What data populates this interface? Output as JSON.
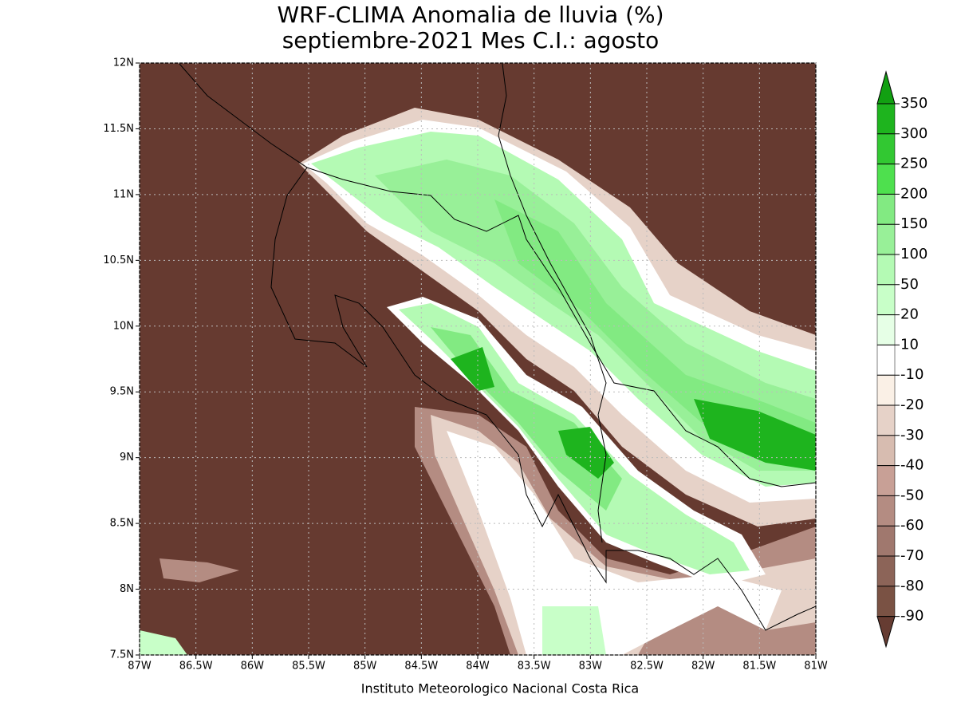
{
  "header": {
    "title": "WRF-CLIMA Anomalia de lluvia (%)",
    "subtitle": "septiembre-2021 Mes C.I.: agosto"
  },
  "map": {
    "xlim": [
      -87,
      -81
    ],
    "ylim": [
      7.5,
      12
    ],
    "xticks": [
      {
        "value": -87,
        "label": "87W"
      },
      {
        "value": -86.5,
        "label": "86.5W"
      },
      {
        "value": -86,
        "label": "86W"
      },
      {
        "value": -85.5,
        "label": "85.5W"
      },
      {
        "value": -85,
        "label": "85W"
      },
      {
        "value": -84.5,
        "label": "84.5W"
      },
      {
        "value": -84,
        "label": "84W"
      },
      {
        "value": -83.5,
        "label": "83.5W"
      },
      {
        "value": -83,
        "label": "83W"
      },
      {
        "value": -82.5,
        "label": "82.5W"
      },
      {
        "value": -82,
        "label": "82W"
      },
      {
        "value": -81.5,
        "label": "81.5W"
      },
      {
        "value": -81,
        "label": "81W"
      }
    ],
    "yticks": [
      {
        "value": 7.5,
        "label": "7.5N"
      },
      {
        "value": 8,
        "label": "8N"
      },
      {
        "value": 8.5,
        "label": "8.5N"
      },
      {
        "value": 9,
        "label": "9N"
      },
      {
        "value": 9.5,
        "label": "9.5N"
      },
      {
        "value": 10,
        "label": "10N"
      },
      {
        "value": 10.5,
        "label": "10.5N"
      },
      {
        "value": 11,
        "label": "11N"
      },
      {
        "value": 11.5,
        "label": "11.5N"
      },
      {
        "value": 12,
        "label": "12N"
      }
    ],
    "grid": true
  },
  "colorbar": {
    "levels": [
      350,
      300,
      250,
      200,
      150,
      100,
      50,
      20,
      10,
      -10,
      -20,
      -30,
      -40,
      -50,
      -60,
      -70,
      -80,
      -90
    ],
    "colors": [
      "#12a012",
      "#1eb41e",
      "#32c832",
      "#4ee04e",
      "#82ea82",
      "#98f098",
      "#b4fab4",
      "#c8ffc8",
      "#e6ffe6",
      "#ffffff",
      "#faf0e6",
      "#e6d2c8",
      "#d7bcb0",
      "#c8a096",
      "#b48c82",
      "#a0786e",
      "#8c6458",
      "#7a5244",
      "#663c32"
    ]
  },
  "footer": {
    "credit": "Instituto Meteorologico Nacional Costa Rica"
  }
}
